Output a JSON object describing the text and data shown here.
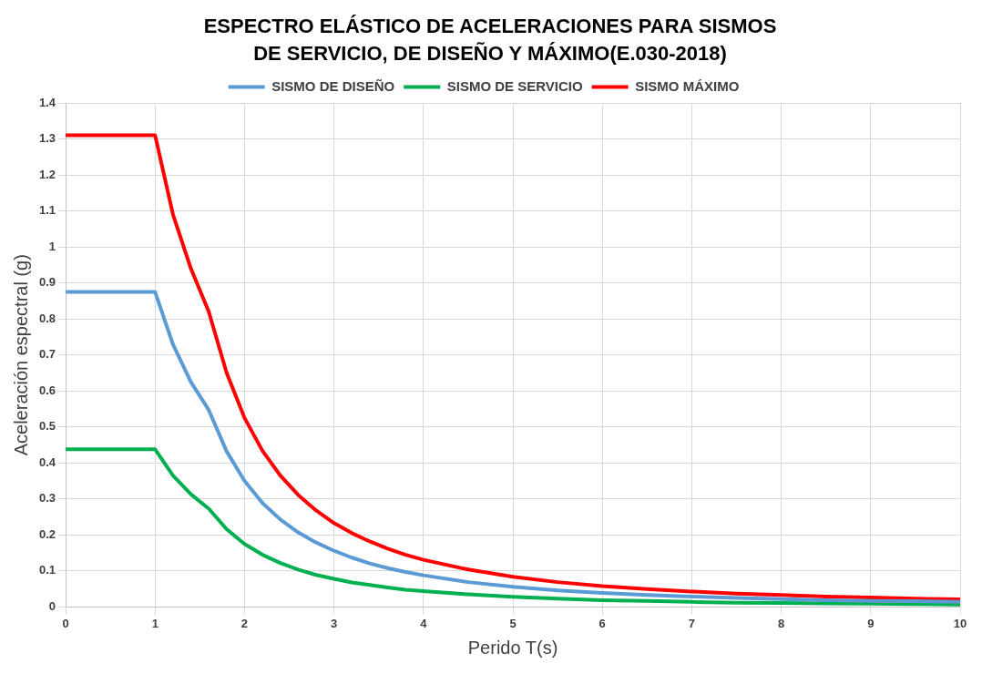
{
  "chart_data": {
    "type": "line",
    "title": "ESPECTRO ELÁSTICO DE ACELERACIONES PARA SISMOS DE SERVICIO, DE DISEÑO Y MÁXIMO(E.030-2018)",
    "xlabel": "Perido T(s)",
    "ylabel": "Aceleración espectral (g)",
    "x": [
      0,
      1,
      1.2,
      1.4,
      1.6,
      1.8,
      2,
      2.2,
      2.4,
      2.6,
      2.8,
      3,
      3.2,
      3.4,
      3.6,
      3.8,
      4,
      4.5,
      5,
      5.5,
      6,
      6.5,
      7,
      7.5,
      8,
      8.5,
      9,
      9.5,
      10
    ],
    "series": [
      {
        "name": "SISMO DE DISEÑO",
        "color": "#5b9bd5",
        "values": [
          0.875,
          0.875,
          0.729,
          0.625,
          0.547,
          0.432,
          0.35,
          0.289,
          0.243,
          0.207,
          0.179,
          0.156,
          0.137,
          0.121,
          0.108,
          0.097,
          0.088,
          0.069,
          0.056,
          0.046,
          0.039,
          0.033,
          0.029,
          0.025,
          0.022,
          0.019,
          0.017,
          0.016,
          0.014
        ]
      },
      {
        "name": "SISMO DE SERVICIO",
        "color": "#00b050",
        "values": [
          0.438,
          0.438,
          0.365,
          0.313,
          0.273,
          0.216,
          0.175,
          0.145,
          0.122,
          0.104,
          0.089,
          0.078,
          0.068,
          0.061,
          0.054,
          0.048,
          0.044,
          0.035,
          0.028,
          0.023,
          0.019,
          0.017,
          0.014,
          0.012,
          0.011,
          0.01,
          0.009,
          0.008,
          0.007
        ]
      },
      {
        "name": "SISMO MÁXIMO",
        "color": "#ff0000",
        "values": [
          1.31,
          1.31,
          1.09,
          0.94,
          0.82,
          0.65,
          0.525,
          0.434,
          0.365,
          0.311,
          0.268,
          0.233,
          0.205,
          0.182,
          0.162,
          0.145,
          0.131,
          0.104,
          0.084,
          0.069,
          0.058,
          0.05,
          0.043,
          0.037,
          0.033,
          0.029,
          0.026,
          0.023,
          0.021
        ]
      }
    ],
    "xlim": [
      0,
      10
    ],
    "xticks": [
      0,
      1,
      2,
      3,
      4,
      5,
      6,
      7,
      8,
      9,
      10
    ],
    "ylim": [
      0,
      1.4
    ],
    "yticks": [
      0,
      0.1,
      0.2,
      0.3,
      0.4,
      0.5,
      0.6,
      0.7,
      0.8,
      0.9,
      1,
      1.1,
      1.2,
      1.3,
      1.4
    ],
    "grid": true,
    "legend": "top",
    "marker": "none",
    "line_style": "solid"
  }
}
